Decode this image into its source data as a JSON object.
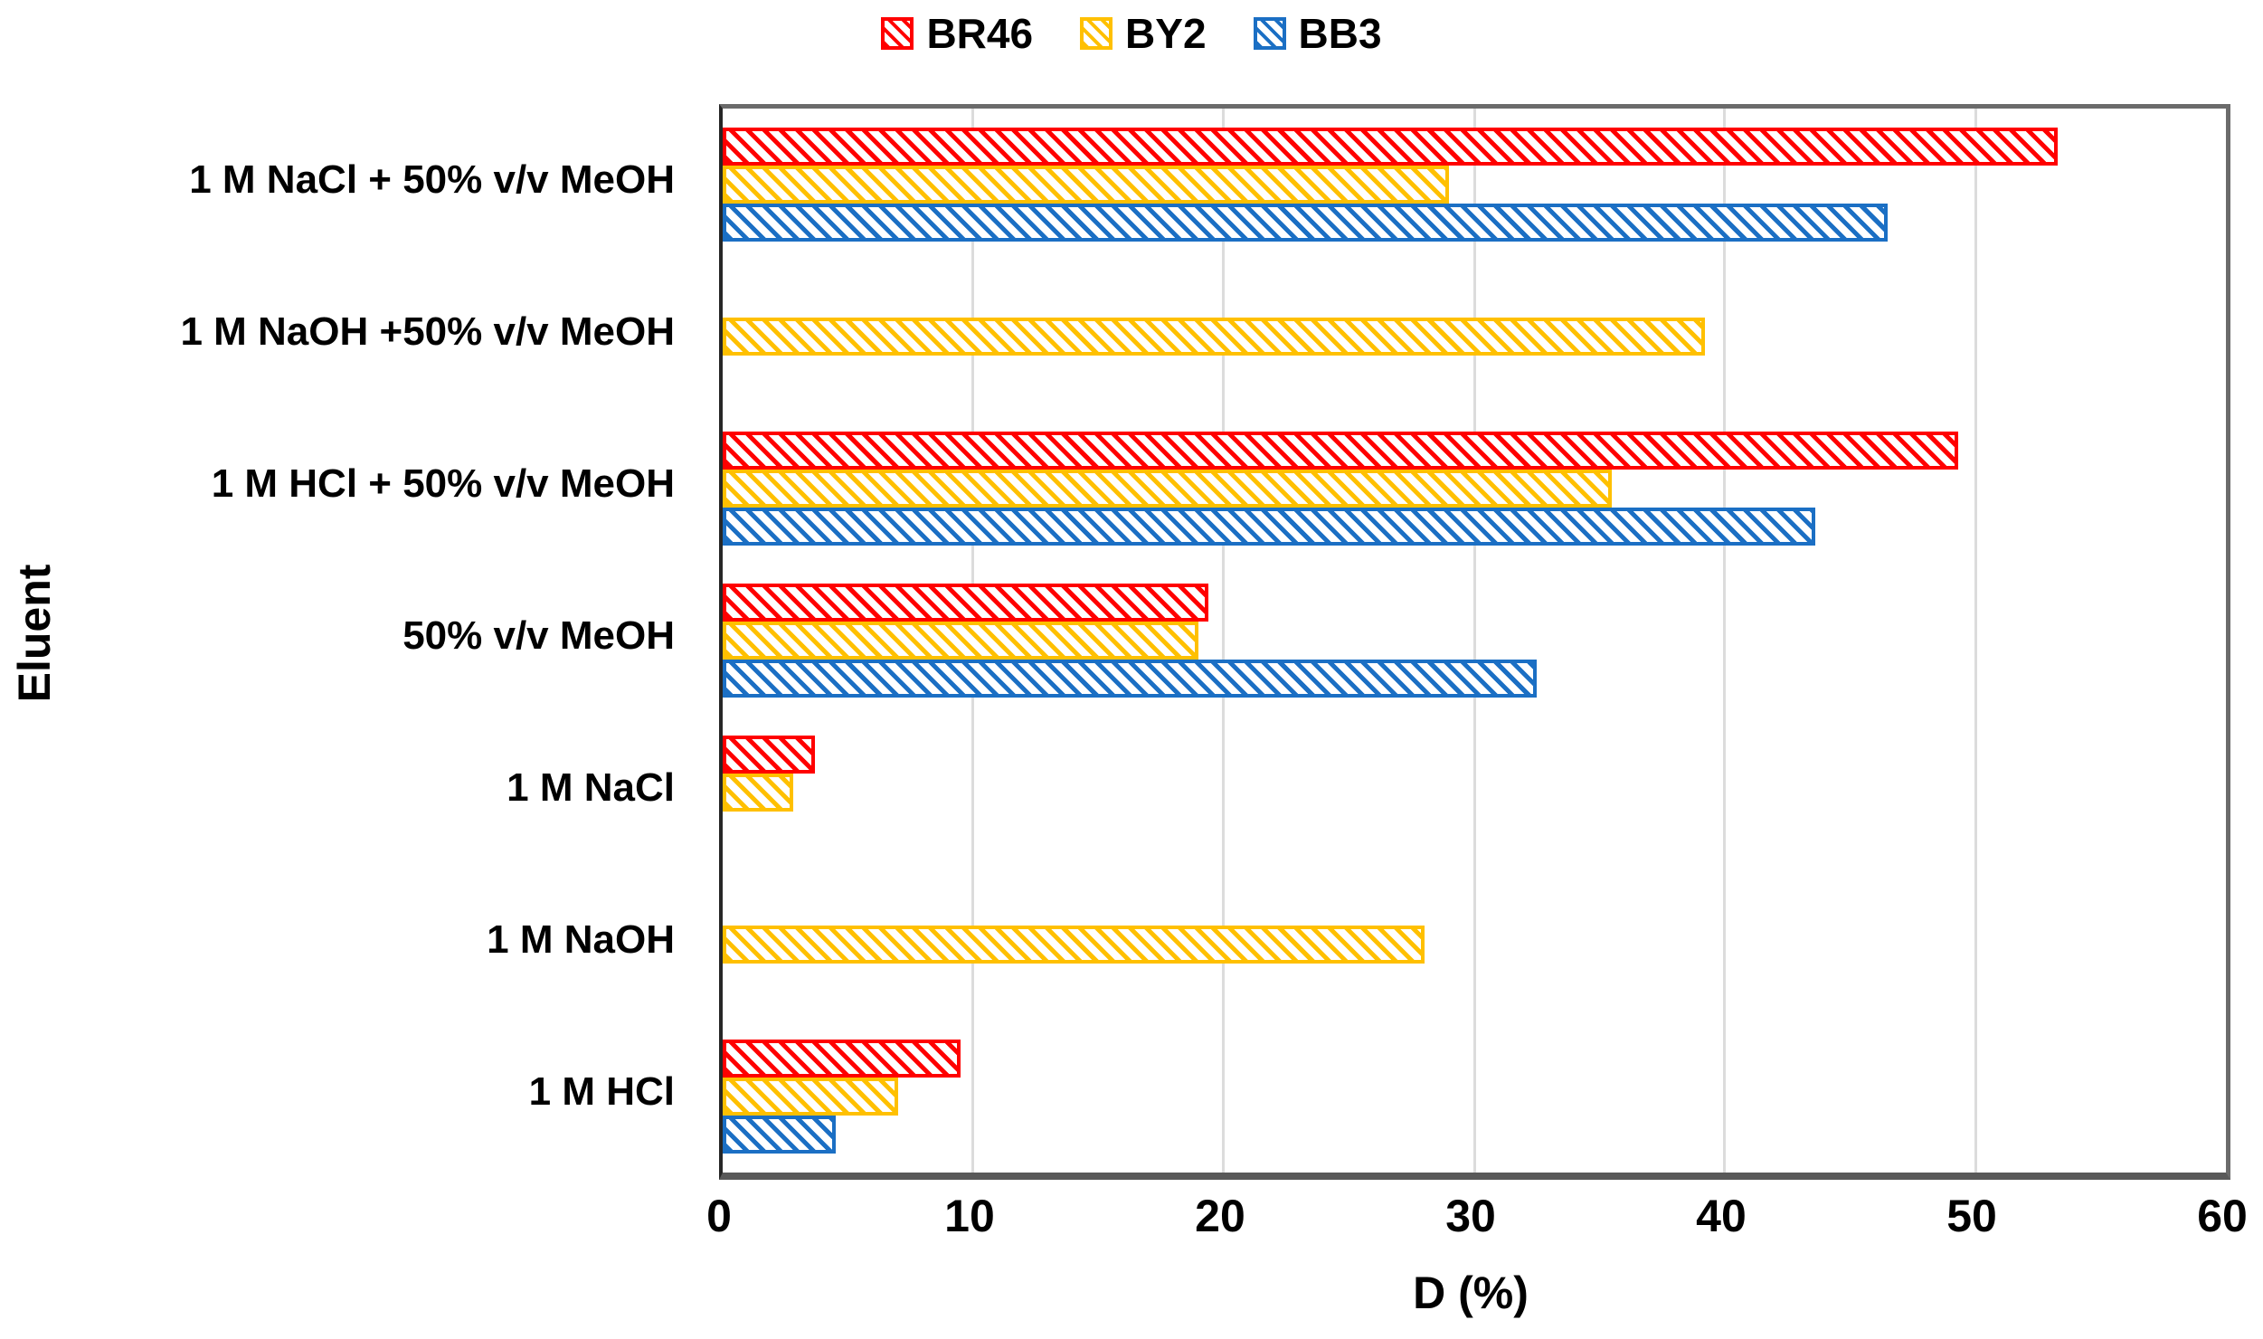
{
  "chart_data": {
    "type": "bar",
    "orientation": "horizontal",
    "xlabel": "D (%)",
    "ylabel": "Eluent",
    "xlim": [
      0,
      60
    ],
    "xticks": [
      0,
      10,
      20,
      30,
      40,
      50,
      60
    ],
    "grid": true,
    "legend_position": "top-center",
    "categories": [
      "1 M NaCl + 50% v/v MeOH",
      "1 M NaOH +50% v/v MeOH",
      "1 M HCl + 50% v/v MeOH",
      "50% v/v MeOH",
      "1 M NaCl",
      "1 M NaOH",
      "1 M HCl"
    ],
    "series": [
      {
        "name": "BR46",
        "color": "#FF0000",
        "values": [
          53.3,
          0,
          49.3,
          19.4,
          3.7,
          0,
          9.5
        ]
      },
      {
        "name": "BY2",
        "color": "#FFC000",
        "values": [
          29.0,
          39.2,
          35.5,
          19.0,
          2.8,
          28.0,
          7.0
        ]
      },
      {
        "name": "BB3",
        "color": "#1B6FC4",
        "values": [
          46.5,
          0,
          43.6,
          32.5,
          0,
          0,
          4.5
        ]
      }
    ],
    "note_colors": {
      "gridline": "#DCDCDC",
      "axis_border": "#595959"
    }
  }
}
